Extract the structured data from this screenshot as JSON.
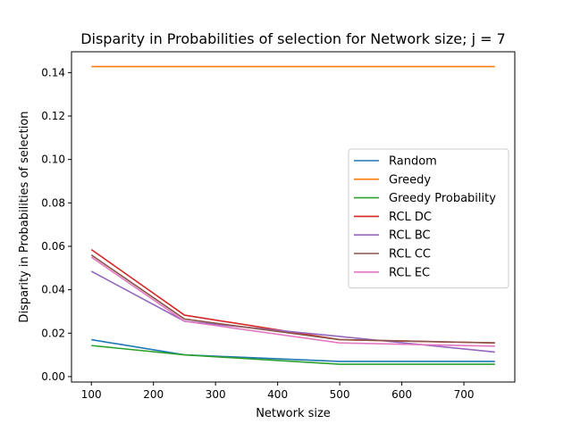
{
  "chart_data": {
    "type": "line",
    "title": "Disparity in Probabilities of selection for Network size; j = 7",
    "xlabel": "Network size",
    "ylabel": "Disparity in Probabilities of selection",
    "xlim": [
      68,
      782
    ],
    "ylim": [
      -0.0025,
      0.1496
    ],
    "x_ticks": [
      100,
      200,
      300,
      400,
      500,
      600,
      700
    ],
    "x_tick_labels": [
      "100",
      "200",
      "300",
      "400",
      "500",
      "600",
      "700"
    ],
    "y_ticks": [
      0.0,
      0.02,
      0.04,
      0.06,
      0.08,
      0.1,
      0.12,
      0.14
    ],
    "y_tick_labels": [
      "0.00",
      "0.02",
      "0.04",
      "0.06",
      "0.08",
      "0.10",
      "0.12",
      "0.14"
    ],
    "grid": false,
    "legend_position": "center-right",
    "x": [
      100,
      250,
      500,
      750
    ],
    "series": [
      {
        "name": "Random",
        "color": "#1f77b4",
        "values": [
          0.017,
          0.01,
          0.007,
          0.007
        ]
      },
      {
        "name": "Greedy",
        "color": "#ff7f0e",
        "values": [
          0.1428,
          0.1428,
          0.1428,
          0.1428
        ]
      },
      {
        "name": "Greedy Probability",
        "color": "#2ca02c",
        "values": [
          0.0143,
          0.01,
          0.0057,
          0.0057
        ]
      },
      {
        "name": "RCL DC",
        "color": "#d62728",
        "values": [
          0.0585,
          0.0283,
          0.017,
          0.0155
        ]
      },
      {
        "name": "RCL BC",
        "color": "#9467bd",
        "values": [
          0.0485,
          0.0255,
          0.0185,
          0.0113
        ]
      },
      {
        "name": "RCL CC",
        "color": "#8c564b",
        "values": [
          0.056,
          0.0265,
          0.017,
          0.0155
        ]
      },
      {
        "name": "RCL EC",
        "color": "#e377c2",
        "values": [
          0.055,
          0.0255,
          0.0155,
          0.014
        ]
      }
    ]
  }
}
